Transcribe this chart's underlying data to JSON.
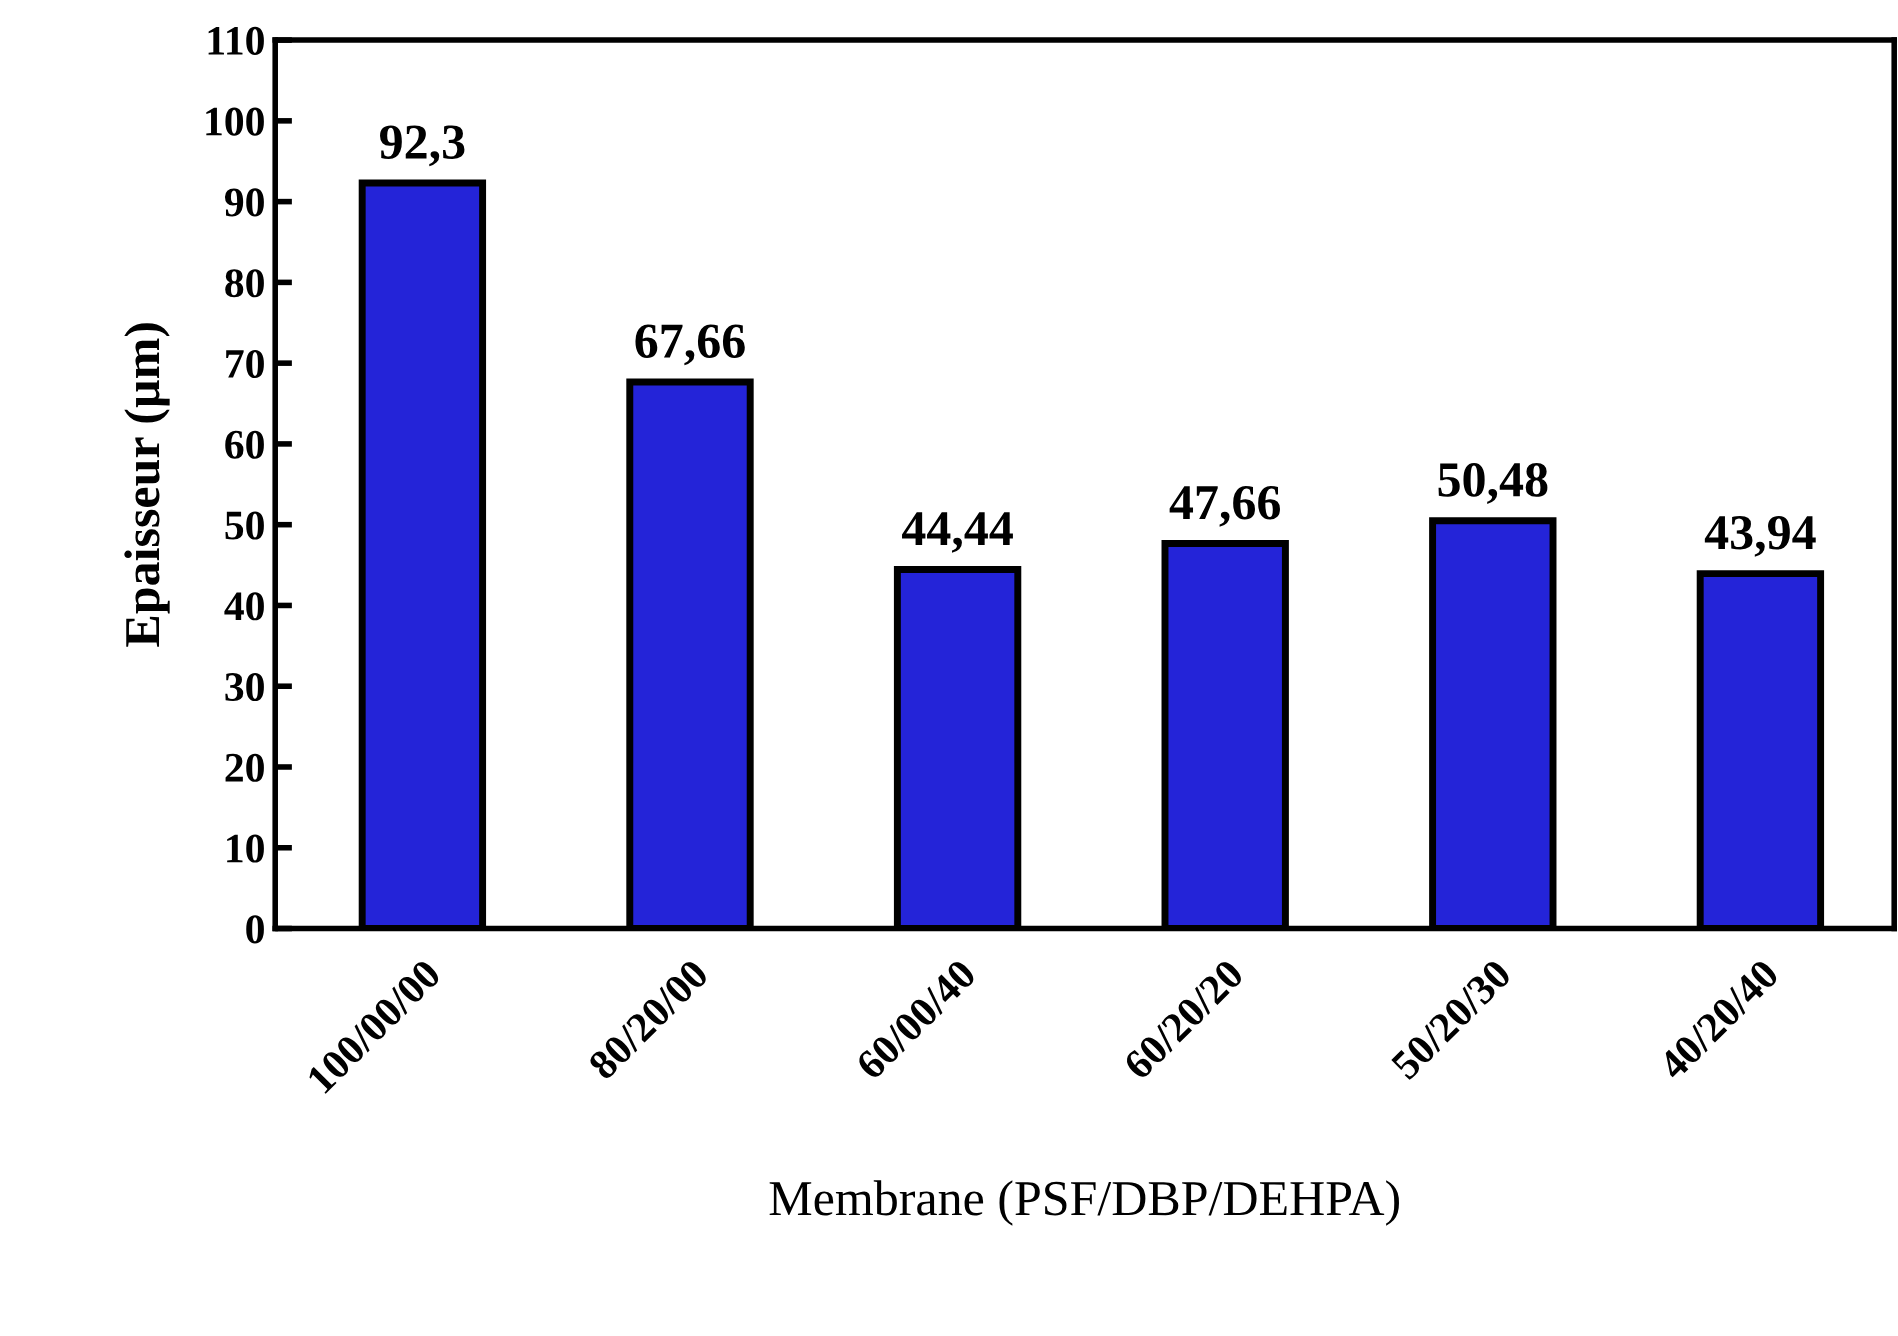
{
  "chart_data": {
    "type": "bar",
    "xlabel": "Membrane (PSF/DBP/DEHPA)",
    "ylabel": "Epaisseur (µm)",
    "categories": [
      "100/00/00",
      "80/20/00",
      "60/00/40",
      "60/20/20",
      "50/20/30",
      "40/20/40"
    ],
    "values": [
      92.3,
      67.66,
      44.44,
      47.66,
      50.48,
      43.94
    ],
    "value_labels": [
      "92,3",
      "67,66",
      "44,44",
      "47,66",
      "50,48",
      "43,94"
    ],
    "color": "#2424d8",
    "ylim": [
      0,
      110
    ],
    "yticks": [
      0,
      10,
      20,
      30,
      40,
      50,
      60,
      70,
      80,
      90,
      100,
      110
    ],
    "grid": false,
    "legend": false
  }
}
